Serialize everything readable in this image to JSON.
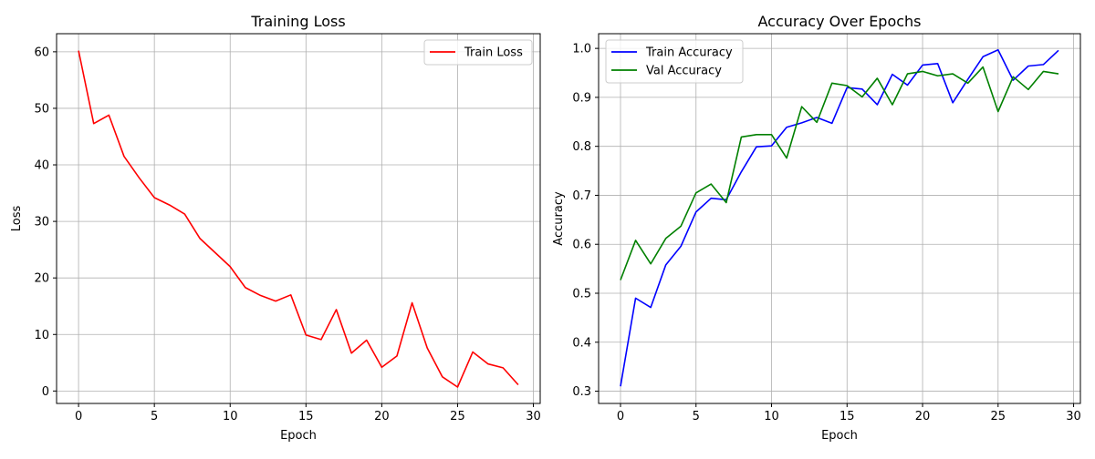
{
  "chart_data": [
    {
      "type": "line",
      "title": "Training Loss",
      "xlabel": "Epoch",
      "ylabel": "Loss",
      "xlim": [
        -1.45,
        30.45
      ],
      "ylim": [
        -2.2,
        63.2
      ],
      "xticks": [
        0,
        5,
        10,
        15,
        20,
        25,
        30
      ],
      "yticks": [
        0,
        10,
        20,
        30,
        40,
        50,
        60
      ],
      "grid": true,
      "legend": "top-right",
      "x": [
        0,
        1,
        2,
        3,
        4,
        5,
        6,
        7,
        8,
        9,
        10,
        11,
        12,
        13,
        14,
        15,
        16,
        17,
        18,
        19,
        20,
        21,
        22,
        23,
        24,
        25,
        26,
        27,
        28,
        29
      ],
      "series": [
        {
          "name": "Train Loss",
          "color": "#ff0000",
          "values": [
            60.2,
            47.3,
            48.8,
            41.5,
            37.7,
            34.2,
            32.9,
            31.3,
            27.0,
            24.5,
            22.0,
            18.3,
            16.9,
            15.9,
            17.0,
            9.9,
            9.1,
            14.4,
            6.7,
            9.0,
            4.2,
            6.2,
            15.6,
            7.6,
            2.5,
            0.7,
            6.9,
            4.8,
            4.1,
            1.1
          ]
        }
      ]
    },
    {
      "type": "line",
      "title": "Accuracy Over Epochs",
      "xlabel": "Epoch",
      "ylabel": "Accuracy",
      "xlim": [
        -1.45,
        30.45
      ],
      "ylim": [
        0.275,
        1.03
      ],
      "xticks": [
        0,
        5,
        10,
        15,
        20,
        25,
        30
      ],
      "yticks": [
        0.3,
        0.4,
        0.5,
        0.6,
        0.7,
        0.8,
        0.9,
        1.0
      ],
      "ytick_labels": [
        "0.3",
        "0.4",
        "0.5",
        "0.6",
        "0.7",
        "0.8",
        "0.9",
        "1.0"
      ],
      "grid": true,
      "legend": "top-left",
      "x": [
        0,
        1,
        2,
        3,
        4,
        5,
        6,
        7,
        8,
        9,
        10,
        11,
        12,
        13,
        14,
        15,
        16,
        17,
        18,
        19,
        20,
        21,
        22,
        23,
        24,
        25,
        26,
        27,
        28,
        29
      ],
      "series": [
        {
          "name": "Train Accuracy",
          "color": "#0000ff",
          "values": [
            0.31,
            0.49,
            0.471,
            0.558,
            0.596,
            0.666,
            0.694,
            0.691,
            0.748,
            0.799,
            0.801,
            0.839,
            0.848,
            0.859,
            0.847,
            0.92,
            0.917,
            0.885,
            0.947,
            0.925,
            0.966,
            0.969,
            0.889,
            0.937,
            0.983,
            0.997,
            0.935,
            0.964,
            0.967,
            0.996
          ]
        },
        {
          "name": "Val Accuracy",
          "color": "#008000",
          "values": [
            0.527,
            0.608,
            0.56,
            0.612,
            0.637,
            0.705,
            0.723,
            0.685,
            0.819,
            0.824,
            0.824,
            0.776,
            0.881,
            0.849,
            0.929,
            0.924,
            0.901,
            0.939,
            0.885,
            0.948,
            0.953,
            0.944,
            0.948,
            0.929,
            0.962,
            0.871,
            0.942,
            0.916,
            0.953,
            0.948
          ]
        }
      ]
    }
  ]
}
